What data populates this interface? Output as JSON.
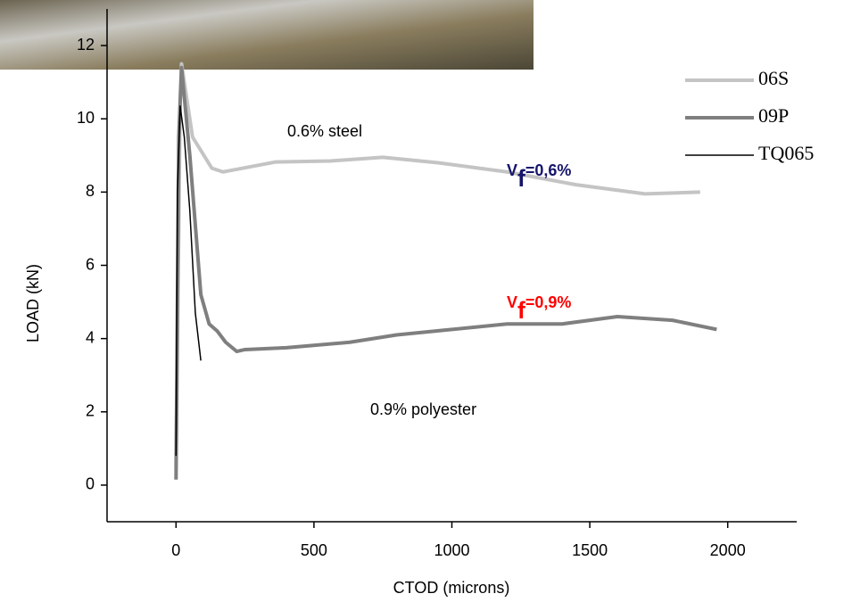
{
  "chart_data": {
    "type": "line",
    "x_label": "CTOD (microns)",
    "y_label": "LOAD (kN)",
    "xlim": [
      -250,
      2250
    ],
    "xticks": [
      0,
      500,
      1000,
      1500,
      2000
    ],
    "ylim": [
      -1,
      13
    ],
    "yticks": [
      0,
      2,
      4,
      6,
      8,
      10,
      12
    ],
    "legend": "top-right",
    "series": [
      {
        "name": "06S",
        "color": "#c4c4c4",
        "x": [
          0,
          15,
          20,
          60,
          130,
          170,
          360,
          560,
          750,
          950,
          1200,
          1450,
          1700,
          1900
        ],
        "values": [
          0.5,
          10.5,
          11.5,
          9.5,
          8.65,
          8.55,
          8.82,
          8.85,
          8.95,
          8.8,
          8.55,
          8.2,
          7.95,
          8.0
        ]
      },
      {
        "name": "09P",
        "color": "#7f7f7f",
        "x": [
          0,
          10,
          20,
          50,
          90,
          120,
          150,
          180,
          220,
          250,
          400,
          630,
          800,
          1000,
          1200,
          1400,
          1600,
          1800,
          1960
        ],
        "values": [
          0.15,
          9.5,
          11.4,
          9.0,
          5.2,
          4.4,
          4.2,
          3.9,
          3.65,
          3.7,
          3.75,
          3.9,
          4.1,
          4.25,
          4.4,
          4.4,
          4.6,
          4.5,
          4.25
        ]
      },
      {
        "name": "TQ065",
        "color": "#000000",
        "x": [
          0,
          5,
          15,
          30,
          50,
          70,
          90
        ],
        "values": [
          0.8,
          8.0,
          10.35,
          9.5,
          7.5,
          4.7,
          3.4
        ]
      }
    ],
    "annotations": [
      {
        "text": "0.6% steel"
      },
      {
        "text": "0.9% polyester"
      },
      {
        "text": "V",
        "sub": "f",
        "rest": "=0,6%",
        "color": "#15156b"
      },
      {
        "text": "V",
        "sub": "f",
        "rest": "=0,9%",
        "color": "#ff0000"
      }
    ]
  }
}
